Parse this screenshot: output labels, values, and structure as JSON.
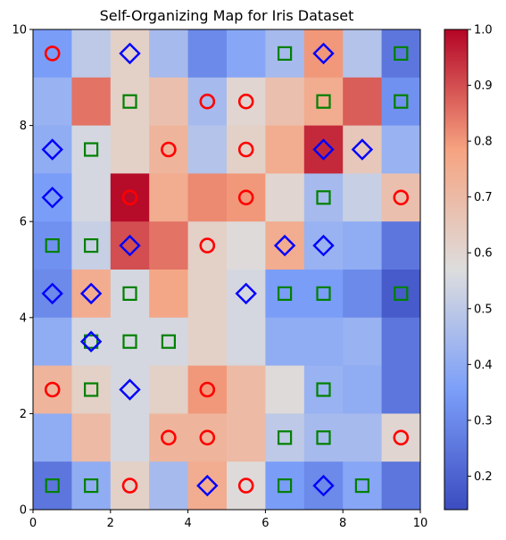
{
  "chart_data": {
    "type": "heatmap",
    "title": "Self-Organizing Map for Iris Dataset",
    "xlabel": "",
    "ylabel": "",
    "xlim": [
      0,
      10
    ],
    "ylim": [
      0,
      10
    ],
    "x_ticks": [
      "0",
      "2",
      "4",
      "6",
      "8",
      "10"
    ],
    "y_ticks": [
      "0",
      "2",
      "4",
      "6",
      "8",
      "10"
    ],
    "grid": false,
    "colormap": "coolwarm",
    "colorbar": {
      "min": 0.14,
      "max": 1.0,
      "ticks": [
        "0.2",
        "0.3",
        "0.4",
        "0.5",
        "0.6",
        "0.7",
        "0.8",
        "0.9",
        "1.0"
      ]
    },
    "grid_size": [
      10,
      10
    ],
    "cell_values_rows_top_to_bottom": [
      [
        0.35,
        0.5,
        0.62,
        0.45,
        0.3,
        0.38,
        0.45,
        0.8,
        0.48,
        0.25
      ],
      [
        0.42,
        0.85,
        0.62,
        0.68,
        0.45,
        0.6,
        0.68,
        0.75,
        0.88,
        0.32
      ],
      [
        0.4,
        0.55,
        0.62,
        0.72,
        0.48,
        0.62,
        0.75,
        0.95,
        0.65,
        0.42
      ],
      [
        0.35,
        0.55,
        0.99,
        0.75,
        0.82,
        0.8,
        0.6,
        0.45,
        0.52,
        0.68
      ],
      [
        0.32,
        0.52,
        0.9,
        0.85,
        0.62,
        0.58,
        0.75,
        0.42,
        0.4,
        0.25
      ],
      [
        0.3,
        0.75,
        0.55,
        0.77,
        0.62,
        0.55,
        0.35,
        0.35,
        0.3,
        0.18
      ],
      [
        0.4,
        0.55,
        0.55,
        0.55,
        0.62,
        0.55,
        0.4,
        0.4,
        0.42,
        0.25
      ],
      [
        0.72,
        0.62,
        0.55,
        0.62,
        0.8,
        0.7,
        0.58,
        0.42,
        0.4,
        0.25
      ],
      [
        0.4,
        0.7,
        0.55,
        0.72,
        0.72,
        0.7,
        0.5,
        0.45,
        0.45,
        0.6
      ],
      [
        0.25,
        0.4,
        0.62,
        0.45,
        0.75,
        0.58,
        0.35,
        0.3,
        0.38,
        0.25
      ]
    ],
    "series": [
      {
        "marker": "circle",
        "color": "#ff0000",
        "points": [
          [
            0.5,
            9.5
          ],
          [
            4.5,
            8.5
          ],
          [
            5.5,
            8.5
          ],
          [
            3.5,
            7.5
          ],
          [
            5.5,
            7.5
          ],
          [
            2.5,
            6.5
          ],
          [
            5.5,
            6.5
          ],
          [
            9.5,
            6.5
          ],
          [
            4.5,
            5.5
          ],
          [
            0.5,
            2.5
          ],
          [
            4.5,
            2.5
          ],
          [
            3.5,
            1.5
          ],
          [
            4.5,
            1.5
          ],
          [
            9.5,
            1.5
          ],
          [
            2.5,
            0.5
          ],
          [
            5.5,
            0.5
          ]
        ]
      },
      {
        "marker": "square",
        "color": "#008000",
        "points": [
          [
            6.5,
            9.5
          ],
          [
            9.5,
            9.5
          ],
          [
            2.5,
            8.5
          ],
          [
            7.5,
            8.5
          ],
          [
            9.5,
            8.5
          ],
          [
            1.5,
            7.5
          ],
          [
            7.5,
            6.5
          ],
          [
            0.5,
            5.5
          ],
          [
            1.5,
            5.5
          ],
          [
            2.5,
            4.5
          ],
          [
            6.5,
            4.5
          ],
          [
            7.5,
            4.5
          ],
          [
            9.5,
            4.5
          ],
          [
            1.5,
            3.5
          ],
          [
            2.5,
            3.5
          ],
          [
            3.5,
            3.5
          ],
          [
            1.5,
            2.5
          ],
          [
            7.5,
            2.5
          ],
          [
            6.5,
            1.5
          ],
          [
            7.5,
            1.5
          ],
          [
            0.5,
            0.5
          ],
          [
            1.5,
            0.5
          ],
          [
            6.5,
            0.5
          ],
          [
            8.5,
            0.5
          ]
        ]
      },
      {
        "marker": "diamond",
        "color": "#0000ff",
        "points": [
          [
            2.5,
            9.5
          ],
          [
            7.5,
            9.5
          ],
          [
            0.5,
            7.5
          ],
          [
            7.5,
            7.5
          ],
          [
            8.5,
            7.5
          ],
          [
            0.5,
            6.5
          ],
          [
            2.5,
            5.5
          ],
          [
            6.5,
            5.5
          ],
          [
            7.5,
            5.5
          ],
          [
            0.5,
            4.5
          ],
          [
            1.5,
            4.5
          ],
          [
            5.5,
            4.5
          ],
          [
            1.5,
            3.5
          ],
          [
            2.5,
            2.5
          ],
          [
            4.5,
            0.5
          ],
          [
            7.5,
            0.5
          ]
        ]
      }
    ]
  }
}
